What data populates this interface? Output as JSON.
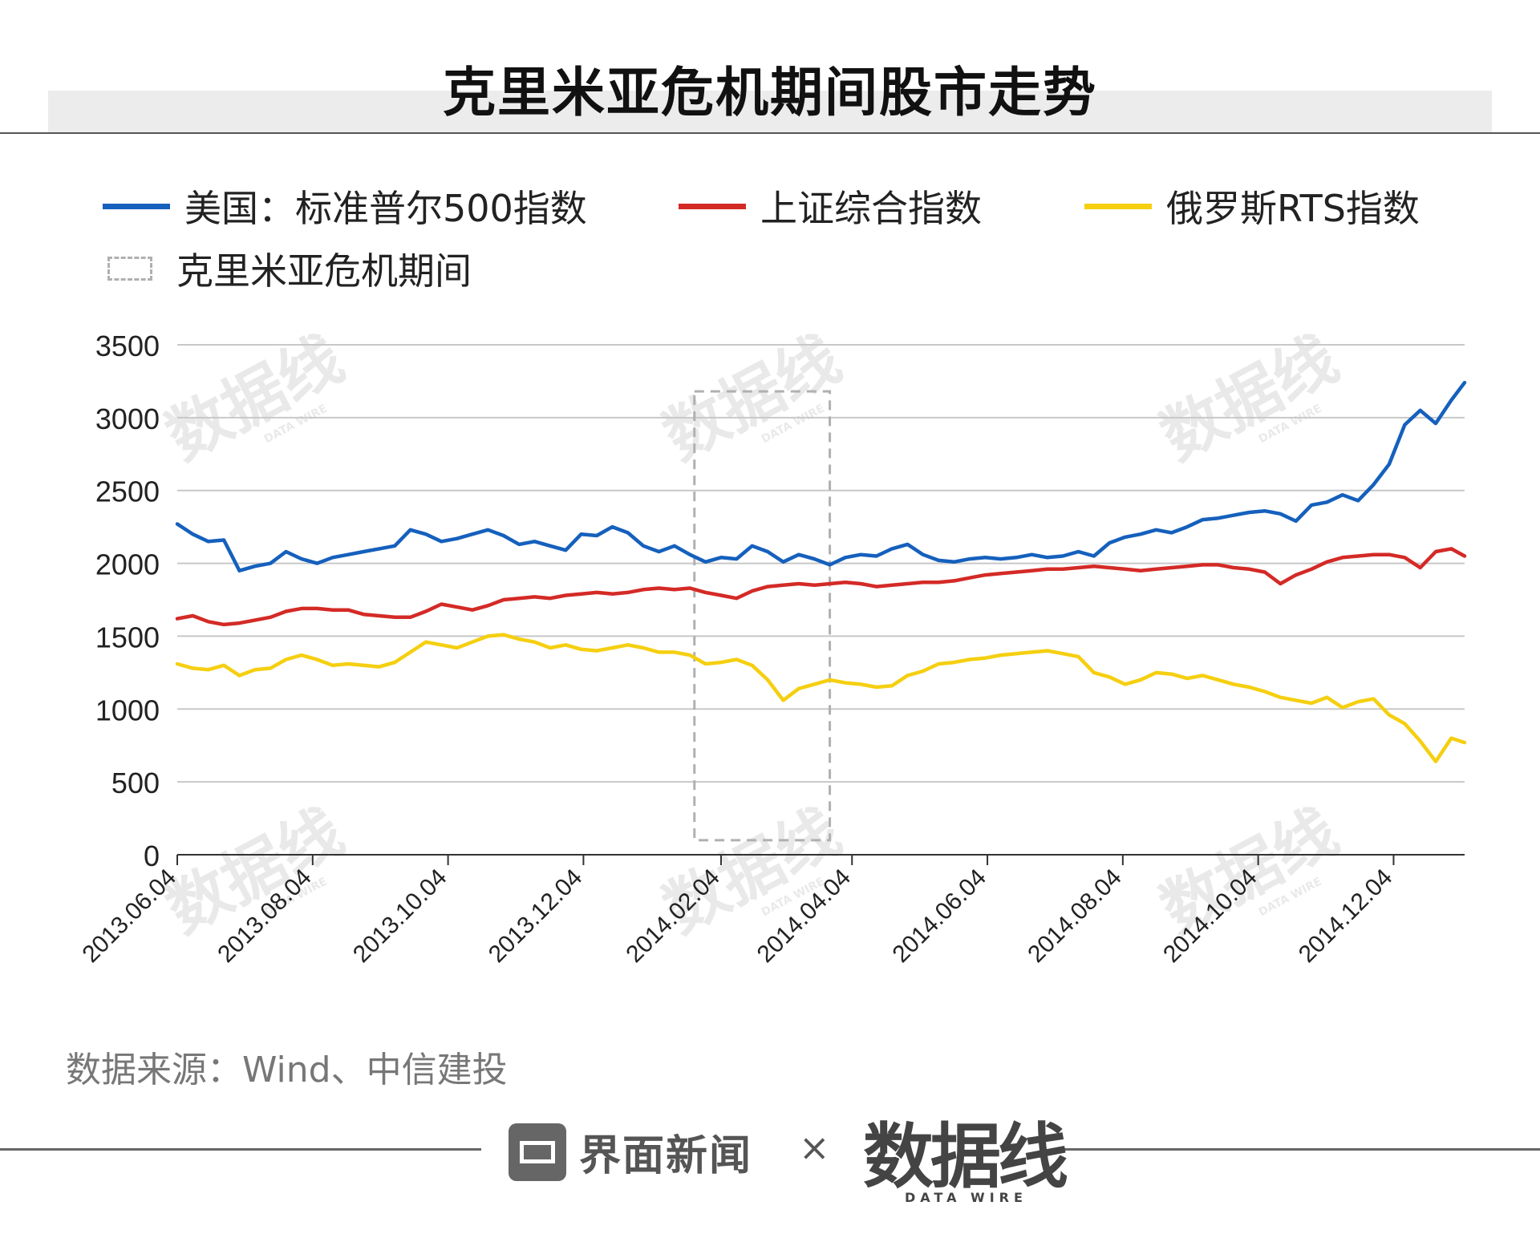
{
  "title": "克里米亚危机期间股市走势",
  "legend": {
    "sp500": "美国：标准普尔500指数",
    "shanghai": "上证综合指数",
    "rts": "俄罗斯RTS指数",
    "crisis": "克里米亚危机期间"
  },
  "colors": {
    "sp500": "#1560bd",
    "shanghai": "#d42a26",
    "rts": "#f5cf10",
    "crisis": "#b0b0b0",
    "grid": "#c8c8c8"
  },
  "source": "数据来源：Wind、中信建投",
  "footer": {
    "logo_text": "界面新闻",
    "separator": "×",
    "brand": "数据线",
    "brand_sub": "DATA WIRE"
  },
  "watermark": {
    "main": "数据线",
    "sub": "DATA WIRE"
  },
  "chart_data": {
    "type": "line",
    "title": "克里米亚危机期间股市走势",
    "ylim": [
      0,
      3500
    ],
    "yticks": [
      0,
      500,
      1000,
      1500,
      2000,
      2500,
      3000,
      3500
    ],
    "xlim": [
      "2013-06-04",
      "2015-01-05"
    ],
    "xticks": [
      "2013.06.04",
      "2013.08.04",
      "2013.10.04",
      "2013.12.04",
      "2014.02.04",
      "2014.04.04",
      "2014.06.04",
      "2014.08.04",
      "2014.10.04",
      "2014.12.04"
    ],
    "x": [
      "2013-06-04",
      "2013-06-11",
      "2013-06-18",
      "2013-06-25",
      "2013-07-02",
      "2013-07-09",
      "2013-07-16",
      "2013-07-23",
      "2013-07-30",
      "2013-08-06",
      "2013-08-13",
      "2013-08-20",
      "2013-08-27",
      "2013-09-03",
      "2013-09-10",
      "2013-09-17",
      "2013-09-24",
      "2013-10-01",
      "2013-10-08",
      "2013-10-15",
      "2013-10-22",
      "2013-10-29",
      "2013-11-05",
      "2013-11-12",
      "2013-11-19",
      "2013-11-26",
      "2013-12-03",
      "2013-12-10",
      "2013-12-17",
      "2013-12-24",
      "2013-12-31",
      "2014-01-07",
      "2014-01-14",
      "2014-01-21",
      "2014-01-28",
      "2014-02-04",
      "2014-02-11",
      "2014-02-18",
      "2014-02-25",
      "2014-03-04",
      "2014-03-11",
      "2014-03-18",
      "2014-03-25",
      "2014-04-01",
      "2014-04-08",
      "2014-04-15",
      "2014-04-22",
      "2014-04-29",
      "2014-05-06",
      "2014-05-13",
      "2014-05-20",
      "2014-05-27",
      "2014-06-03",
      "2014-06-10",
      "2014-06-17",
      "2014-06-24",
      "2014-07-01",
      "2014-07-08",
      "2014-07-15",
      "2014-07-22",
      "2014-07-29",
      "2014-08-05",
      "2014-08-12",
      "2014-08-19",
      "2014-08-26",
      "2014-09-02",
      "2014-09-09",
      "2014-09-16",
      "2014-09-23",
      "2014-09-30",
      "2014-10-07",
      "2014-10-14",
      "2014-10-21",
      "2014-10-28",
      "2014-11-04",
      "2014-11-11",
      "2014-11-18",
      "2014-11-25",
      "2014-12-02",
      "2014-12-09",
      "2014-12-16",
      "2014-12-23",
      "2014-12-30",
      "2015-01-05"
    ],
    "series": [
      {
        "name": "美国：标准普尔500指数",
        "values": [
          2270,
          2200,
          2150,
          2160,
          1950,
          1980,
          2000,
          2080,
          2030,
          2000,
          2040,
          2060,
          2080,
          2100,
          2120,
          2230,
          2200,
          2150,
          2170,
          2200,
          2230,
          2190,
          2130,
          2150,
          2120,
          2090,
          2200,
          2190,
          2250,
          2210,
          2120,
          2080,
          2120,
          2060,
          2010,
          2040,
          2030,
          2120,
          2080,
          2010,
          2060,
          2030,
          1990,
          2040,
          2060,
          2050,
          2100,
          2130,
          2060,
          2020,
          2010,
          2030,
          2040,
          2030,
          2040,
          2060,
          2040,
          2050,
          2080,
          2050,
          2140,
          2180,
          2200,
          2230,
          2210,
          2250,
          2300,
          2310,
          2330,
          2350,
          2360,
          2340,
          2290,
          2400,
          2420,
          2470,
          2430,
          2540,
          2680,
          2950,
          3050,
          2960,
          3120,
          3240
        ]
      },
      {
        "name": "上证综合指数",
        "values": [
          1620,
          1640,
          1600,
          1580,
          1590,
          1610,
          1630,
          1670,
          1690,
          1690,
          1680,
          1680,
          1650,
          1640,
          1630,
          1630,
          1670,
          1720,
          1700,
          1680,
          1710,
          1750,
          1760,
          1770,
          1760,
          1780,
          1790,
          1800,
          1790,
          1800,
          1820,
          1830,
          1820,
          1830,
          1800,
          1780,
          1760,
          1810,
          1840,
          1850,
          1860,
          1850,
          1860,
          1870,
          1860,
          1840,
          1850,
          1860,
          1870,
          1870,
          1880,
          1900,
          1920,
          1930,
          1940,
          1950,
          1960,
          1960,
          1970,
          1980,
          1970,
          1960,
          1950,
          1960,
          1970,
          1980,
          1990,
          1990,
          1970,
          1960,
          1940,
          1860,
          1920,
          1960,
          2010,
          2040,
          2050,
          2060,
          2060,
          2040,
          1970,
          2080,
          2100,
          2050
        ]
      },
      {
        "name": "俄罗斯RTS指数",
        "values": [
          1310,
          1280,
          1270,
          1300,
          1230,
          1270,
          1280,
          1340,
          1370,
          1340,
          1300,
          1310,
          1300,
          1290,
          1320,
          1390,
          1460,
          1440,
          1420,
          1460,
          1500,
          1510,
          1480,
          1460,
          1420,
          1440,
          1410,
          1400,
          1420,
          1440,
          1420,
          1390,
          1390,
          1370,
          1310,
          1320,
          1340,
          1300,
          1200,
          1060,
          1140,
          1170,
          1200,
          1180,
          1170,
          1150,
          1160,
          1230,
          1260,
          1310,
          1320,
          1340,
          1350,
          1370,
          1380,
          1390,
          1400,
          1380,
          1360,
          1250,
          1220,
          1170,
          1200,
          1250,
          1240,
          1210,
          1230,
          1200,
          1170,
          1150,
          1120,
          1080,
          1060,
          1040,
          1080,
          1010,
          1050,
          1070,
          960,
          900,
          780,
          640,
          800,
          770
        ]
      }
    ],
    "annotations": [
      {
        "type": "dashed-box",
        "label": "克里米亚危机期间",
        "x_range": [
          "2014-01-23",
          "2014-03-25"
        ],
        "y_range": [
          100,
          3180
        ]
      }
    ],
    "grid": "horizontal",
    "legend_position": "top"
  }
}
